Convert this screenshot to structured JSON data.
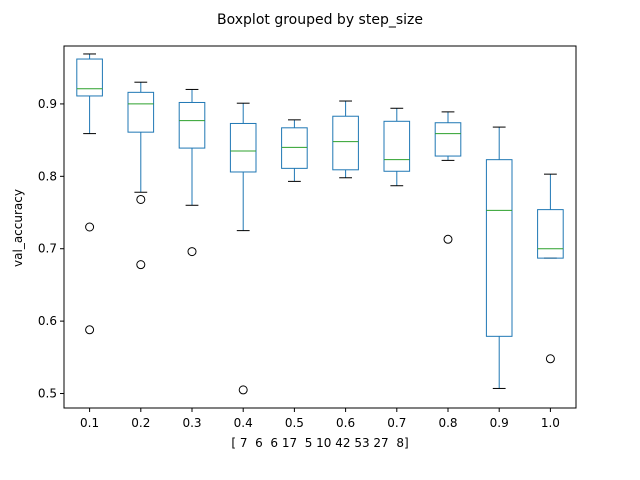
{
  "chart_data": {
    "type": "boxplot",
    "title": "Boxplot grouped by step_size",
    "xlabel": "[ 7  6  6 17  5 10 42 53 27  8]",
    "ylabel": "val_accuracy",
    "ylim": [
      0.48,
      0.98
    ],
    "yticks": [
      "0.5",
      "0.6",
      "0.7",
      "0.8",
      "0.9"
    ],
    "grid": false,
    "colors": {
      "box": "#1f77b4",
      "median": "#2ca02c",
      "whisker": "#000000",
      "outlier": "#000000"
    },
    "categories": [
      "0.1",
      "0.2",
      "0.3",
      "0.4",
      "0.5",
      "0.6",
      "0.7",
      "0.8",
      "0.9",
      "1.0"
    ],
    "boxes": [
      {
        "whislo": 0.859,
        "q1": 0.911,
        "med": 0.921,
        "q3": 0.962,
        "whishi": 0.969,
        "fliers": [
          0.73,
          0.588
        ]
      },
      {
        "whislo": 0.778,
        "q1": 0.861,
        "med": 0.9,
        "q3": 0.916,
        "whishi": 0.93,
        "fliers": [
          0.768,
          0.678
        ]
      },
      {
        "whislo": 0.76,
        "q1": 0.839,
        "med": 0.877,
        "q3": 0.902,
        "whishi": 0.92,
        "fliers": [
          0.696
        ]
      },
      {
        "whislo": 0.725,
        "q1": 0.806,
        "med": 0.835,
        "q3": 0.873,
        "whishi": 0.901,
        "fliers": [
          0.505
        ]
      },
      {
        "whislo": 0.793,
        "q1": 0.811,
        "med": 0.84,
        "q3": 0.867,
        "whishi": 0.878,
        "fliers": []
      },
      {
        "whislo": 0.798,
        "q1": 0.809,
        "med": 0.848,
        "q3": 0.883,
        "whishi": 0.904,
        "fliers": []
      },
      {
        "whislo": 0.787,
        "q1": 0.807,
        "med": 0.823,
        "q3": 0.876,
        "whishi": 0.894,
        "fliers": []
      },
      {
        "whislo": 0.822,
        "q1": 0.828,
        "med": 0.859,
        "q3": 0.874,
        "whishi": 0.889,
        "fliers": [
          0.713
        ]
      },
      {
        "whislo": 0.507,
        "q1": 0.579,
        "med": 0.753,
        "q3": 0.823,
        "whishi": 0.868,
        "fliers": []
      },
      {
        "whislo": 0.687,
        "q1": 0.687,
        "med": 0.7,
        "q3": 0.754,
        "whishi": 0.803,
        "fliers": [
          0.548
        ]
      }
    ]
  }
}
